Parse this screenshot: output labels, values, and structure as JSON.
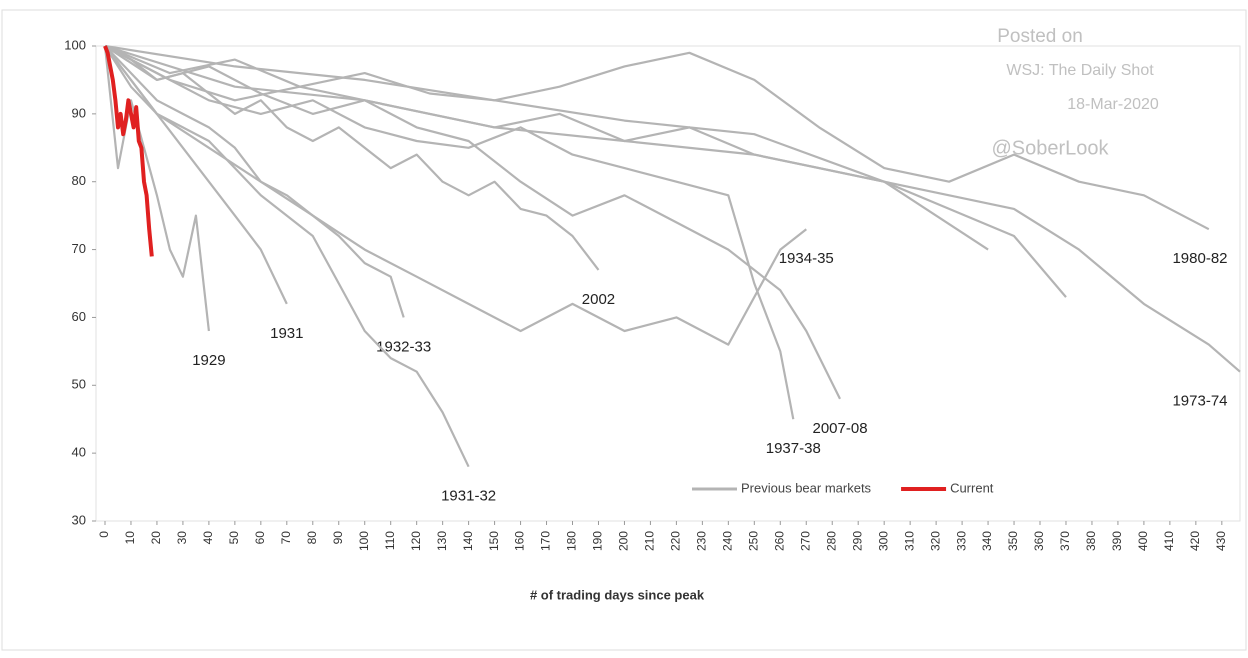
{
  "chart_data": {
    "type": "line",
    "x_label": "# of trading days since peak",
    "annotations": [
      "Posted on",
      "WSJ: The Daily Shot",
      "18-Mar-2020",
      "@SoberLook"
    ],
    "xlim": [
      0,
      437
    ],
    "ylim": [
      30,
      100
    ],
    "xticks": [
      0,
      10,
      20,
      30,
      40,
      50,
      60,
      70,
      80,
      90,
      100,
      110,
      120,
      130,
      140,
      150,
      160,
      170,
      180,
      190,
      200,
      210,
      220,
      230,
      240,
      250,
      260,
      270,
      280,
      290,
      300,
      310,
      320,
      330,
      340,
      350,
      360,
      370,
      380,
      390,
      400,
      410,
      420,
      430
    ],
    "yticks": [
      30,
      40,
      50,
      60,
      70,
      80,
      90,
      100
    ],
    "legend": [
      {
        "label": "Previous bear markets",
        "color": "#b4b4b4"
      },
      {
        "label": "Current",
        "color": "#e02020"
      }
    ],
    "series": [
      {
        "name": "1929",
        "color": "#b4b4b4",
        "x": [
          0,
          5,
          10,
          15,
          20,
          25,
          30,
          35,
          40
        ],
        "values": [
          100,
          82,
          92,
          85,
          78,
          70,
          66,
          75,
          58
        ]
      },
      {
        "name": "1931",
        "color": "#b4b4b4",
        "x": [
          0,
          10,
          20,
          30,
          40,
          50,
          60,
          70
        ],
        "values": [
          100,
          95,
          90,
          85,
          80,
          75,
          70,
          62
        ]
      },
      {
        "name": "1932-33",
        "color": "#b4b4b4",
        "x": [
          0,
          10,
          20,
          30,
          40,
          50,
          60,
          70,
          80,
          90,
          100,
          110,
          115
        ],
        "values": [
          100,
          96,
          92,
          90,
          88,
          85,
          80,
          78,
          75,
          72,
          68,
          66,
          60
        ]
      },
      {
        "name": "1931-32",
        "color": "#b4b4b4",
        "x": [
          0,
          10,
          20,
          30,
          40,
          50,
          60,
          70,
          80,
          90,
          100,
          110,
          120,
          130,
          140
        ],
        "values": [
          100,
          94,
          90,
          88,
          86,
          82,
          78,
          75,
          72,
          65,
          58,
          54,
          52,
          46,
          38
        ]
      },
      {
        "name": "2002",
        "color": "#b4b4b4",
        "x": [
          0,
          10,
          20,
          30,
          40,
          50,
          60,
          70,
          80,
          90,
          100,
          110,
          120,
          130,
          140,
          150,
          160,
          170,
          180,
          190
        ],
        "values": [
          100,
          98,
          95,
          96,
          93,
          90,
          92,
          88,
          86,
          88,
          85,
          82,
          84,
          80,
          78,
          80,
          76,
          75,
          72,
          67
        ]
      },
      {
        "name": "1937-38",
        "color": "#b4b4b4",
        "x": [
          0,
          20,
          40,
          60,
          80,
          100,
          120,
          140,
          160,
          180,
          200,
          220,
          240,
          250,
          260,
          265
        ],
        "values": [
          100,
          96,
          92,
          90,
          92,
          88,
          86,
          85,
          88,
          84,
          82,
          80,
          78,
          65,
          55,
          45
        ]
      },
      {
        "name": "2007-08",
        "color": "#b4b4b4",
        "x": [
          0,
          20,
          40,
          60,
          80,
          100,
          120,
          140,
          160,
          180,
          200,
          220,
          240,
          260,
          270,
          283
        ],
        "values": [
          100,
          95,
          97,
          93,
          90,
          92,
          88,
          86,
          80,
          75,
          78,
          74,
          70,
          64,
          58,
          48
        ]
      },
      {
        "name": "1934-35",
        "color": "#b4b4b4",
        "x": [
          0,
          20,
          40,
          60,
          80,
          100,
          120,
          140,
          160,
          180,
          200,
          220,
          240,
          260,
          270
        ],
        "values": [
          100,
          90,
          85,
          80,
          75,
          70,
          66,
          62,
          58,
          62,
          58,
          60,
          56,
          70,
          73
        ]
      },
      {
        "name": "1973-74",
        "color": "#b4b4b4",
        "x": [
          0,
          25,
          50,
          75,
          100,
          125,
          150,
          175,
          200,
          225,
          250,
          275,
          300,
          325,
          350,
          375,
          400,
          425,
          437
        ],
        "values": [
          100,
          96,
          98,
          94,
          92,
          90,
          88,
          90,
          86,
          88,
          84,
          82,
          80,
          78,
          76,
          70,
          62,
          56,
          52
        ]
      },
      {
        "name": "1980-82",
        "color": "#b4b4b4",
        "x": [
          0,
          25,
          50,
          75,
          100,
          125,
          150,
          175,
          200,
          225,
          250,
          275,
          300,
          325,
          350,
          375,
          400,
          425
        ],
        "values": [
          100,
          95,
          92,
          94,
          96,
          93,
          92,
          94,
          97,
          99,
          95,
          88,
          82,
          80,
          84,
          80,
          78,
          73
        ]
      },
      {
        "color": "#b4b4b4",
        "x": [
          0,
          50,
          100,
          150,
          200,
          250,
          300,
          350,
          370
        ],
        "values": [
          100,
          94,
          92,
          88,
          86,
          84,
          80,
          72,
          63
        ]
      },
      {
        "color": "#b4b4b4",
        "x": [
          0,
          50,
          100,
          150,
          200,
          250,
          300,
          340
        ],
        "values": [
          100,
          97,
          95,
          92,
          89,
          87,
          80,
          70
        ]
      },
      {
        "color": "#e02020",
        "x": [
          0,
          1,
          2,
          3,
          4,
          5,
          6,
          7,
          8,
          9,
          10,
          11,
          12,
          13,
          14,
          15,
          16,
          17,
          18
        ],
        "values": [
          100,
          99,
          97,
          95,
          92,
          88,
          90,
          87,
          89,
          92,
          90,
          88,
          91,
          86,
          85,
          80,
          78,
          73,
          69
        ]
      }
    ]
  }
}
